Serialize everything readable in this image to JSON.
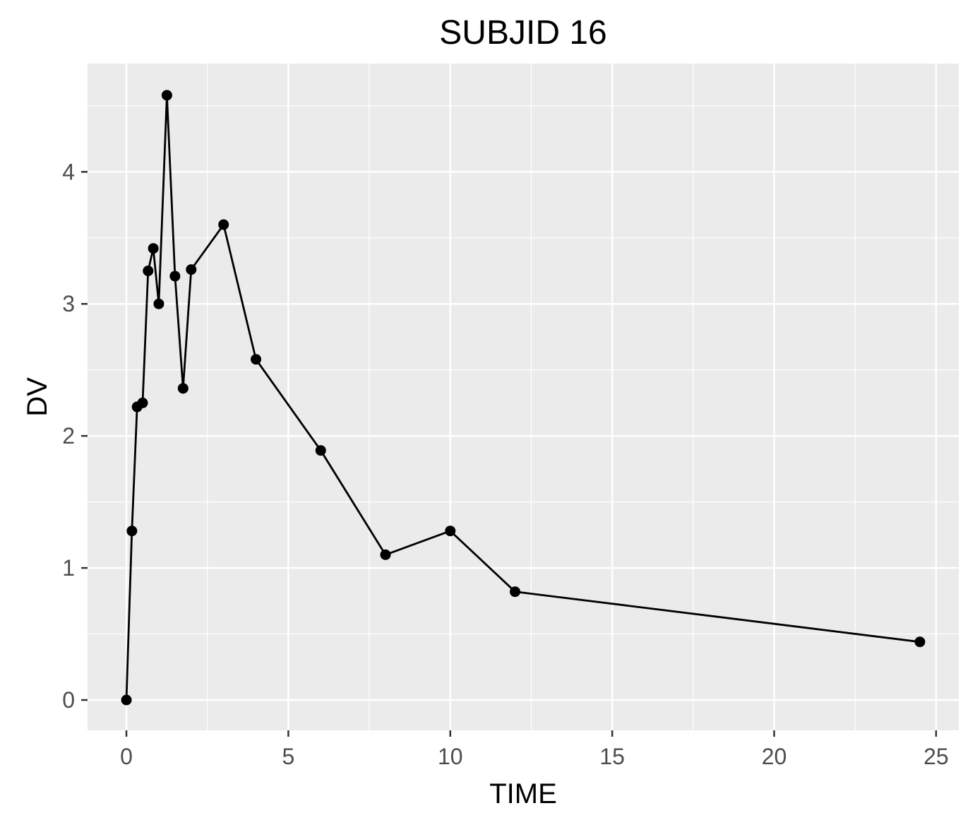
{
  "chart_data": {
    "type": "line",
    "title": "SUBJID 16",
    "xlabel": "TIME",
    "ylabel": "DV",
    "xlim": [
      -1.2,
      25.7
    ],
    "ylim": [
      -0.23,
      4.82
    ],
    "x_ticks": [
      0,
      5,
      10,
      15,
      20,
      25
    ],
    "y_ticks": [
      0,
      1,
      2,
      3,
      4
    ],
    "x_tick_labels": [
      "0",
      "5",
      "10",
      "15",
      "20",
      "25"
    ],
    "y_tick_labels": [
      "0",
      "1",
      "2",
      "3",
      "4"
    ],
    "grid": true,
    "panel_background": "#ebebeb",
    "series": [
      {
        "color": "#000000",
        "x": [
          0,
          0.17,
          0.33,
          0.5,
          0.67,
          0.83,
          1,
          1.25,
          1.5,
          1.75,
          2,
          3,
          4,
          6,
          8,
          10,
          12,
          24.5
        ],
        "y": [
          0,
          1.28,
          2.22,
          2.25,
          3.25,
          3.42,
          3.0,
          4.58,
          3.21,
          2.36,
          3.26,
          3.6,
          2.58,
          1.89,
          1.1,
          1.28,
          0.82,
          0.44
        ]
      }
    ]
  }
}
